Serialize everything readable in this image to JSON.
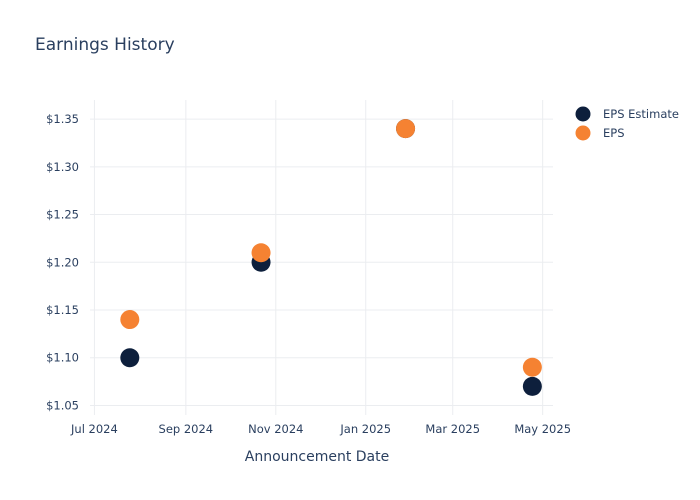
{
  "chart_data": {
    "type": "scatter",
    "title": "Earnings History",
    "xlabel": "Announcement Date",
    "ylabel": "",
    "x_tick_labels": [
      "Jul 2024",
      "Sep 2024",
      "Nov 2024",
      "Jan 2025",
      "Mar 2025",
      "May 2025"
    ],
    "x_ticks": [
      "2024-07-01",
      "2024-09-01",
      "2024-11-01",
      "2025-01-01",
      "2025-03-01",
      "2025-05-01"
    ],
    "xlim": [
      "2024-06-28",
      "2025-05-08"
    ],
    "y_tick_labels": [
      "$1.05",
      "$1.10",
      "$1.15",
      "$1.20",
      "$1.25",
      "$1.30",
      "$1.35"
    ],
    "y_ticks": [
      1.05,
      1.1,
      1.15,
      1.2,
      1.25,
      1.3,
      1.35
    ],
    "ylim": [
      1.04,
      1.37
    ],
    "grid": true,
    "legend_position": "top-right",
    "x": [
      "2024-07-25",
      "2024-10-22",
      "2025-01-28",
      "2025-04-24"
    ],
    "series": [
      {
        "name": "EPS Estimate",
        "color": "#0d1f3c",
        "values": [
          1.1,
          1.2,
          1.34,
          1.07
        ]
      },
      {
        "name": "EPS",
        "color": "#f58232",
        "values": [
          1.14,
          1.21,
          1.34,
          1.09
        ]
      }
    ]
  }
}
